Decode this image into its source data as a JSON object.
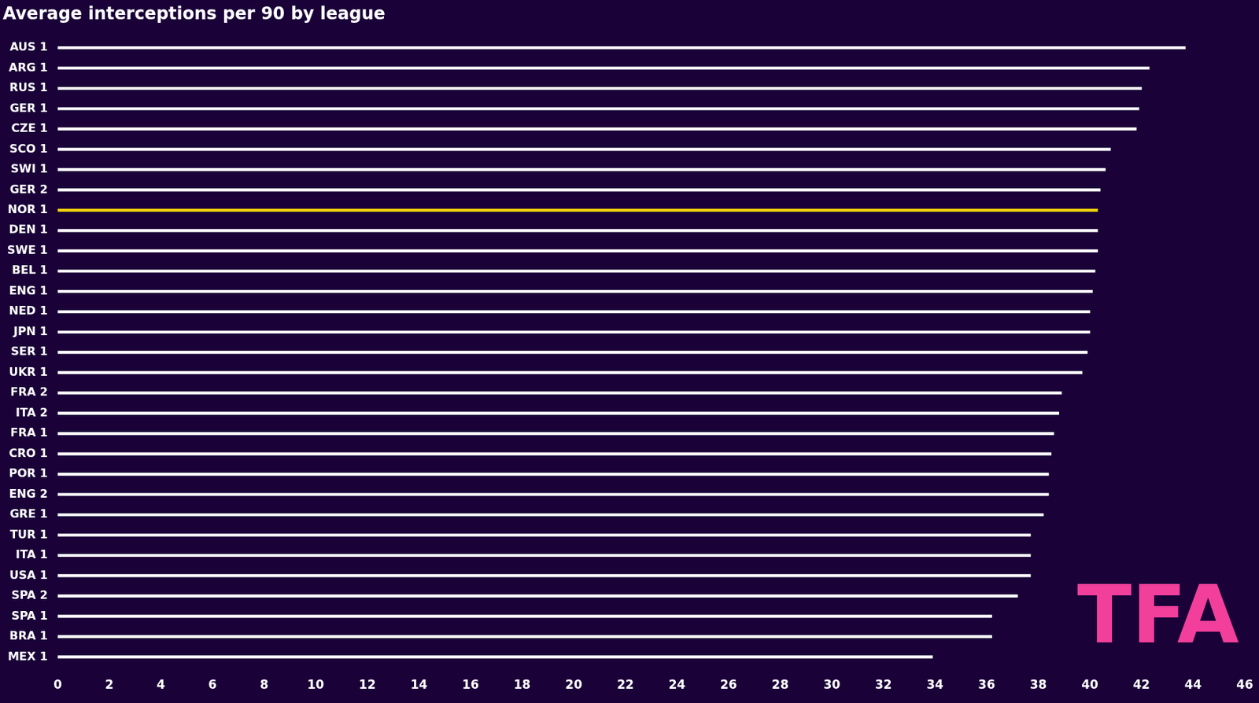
{
  "chart_data": {
    "type": "bar",
    "orientation": "horizontal",
    "title": "Average interceptions per 90 by league",
    "annotation": "TFA",
    "categories": [
      "AUS 1",
      "ARG 1",
      "RUS 1",
      "GER 1",
      "CZE 1",
      "SCO 1",
      "SWI 1",
      "GER 2",
      "NOR 1",
      "DEN 1",
      "SWE 1",
      "BEL 1",
      "ENG 1",
      "NED 1",
      "JPN 1",
      "SER 1",
      "UKR 1",
      "FRA 2",
      "ITA 2",
      "FRA 1",
      "CRO 1",
      "POR 1",
      "ENG 2",
      "GRE 1",
      "TUR 1",
      "ITA 1",
      "USA 1",
      "SPA 2",
      "SPA 1",
      "BRA 1",
      "MEX 1"
    ],
    "values": [
      43.7,
      42.3,
      42.0,
      41.9,
      41.8,
      40.8,
      40.6,
      40.4,
      40.3,
      40.3,
      40.3,
      40.2,
      40.1,
      40.0,
      40.0,
      39.9,
      39.7,
      38.9,
      38.8,
      38.6,
      38.5,
      38.4,
      38.4,
      38.2,
      37.7,
      37.7,
      37.7,
      37.2,
      36.2,
      36.2,
      33.9
    ],
    "colors": [
      "#ffffff",
      "#ffffff",
      "#ffffff",
      "#ffffff",
      "#ffffff",
      "#ffffff",
      "#ffffff",
      "#ffffff",
      "#f5d60a",
      "#ffffff",
      "#ffffff",
      "#ffffff",
      "#ffffff",
      "#ffffff",
      "#ffffff",
      "#ffffff",
      "#ffffff",
      "#ffffff",
      "#ffffff",
      "#ffffff",
      "#ffffff",
      "#ffffff",
      "#ffffff",
      "#ffffff",
      "#ffffff",
      "#ffffff",
      "#ffffff",
      "#ffffff",
      "#ffffff",
      "#ffffff",
      "#ffffff"
    ],
    "xlim": [
      0,
      46
    ],
    "xticks": [
      0,
      2,
      4,
      6,
      8,
      10,
      12,
      14,
      16,
      18,
      20,
      22,
      24,
      26,
      28,
      30,
      32,
      34,
      36,
      38,
      40,
      42,
      44,
      46
    ],
    "grid": false
  }
}
